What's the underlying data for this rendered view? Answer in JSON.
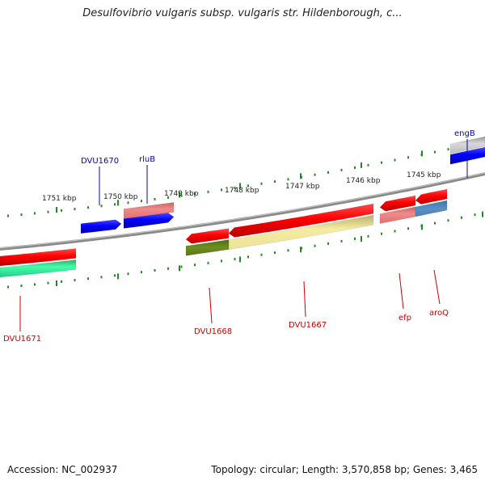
{
  "title": "Desulfovibrio vulgaris subsp. vulgaris str. Hildenborough, c...",
  "footer": {
    "accession": "Accession: NC_002937",
    "summary": "Topology: circular; Length: 3,570,858 bp; Genes: 3,465"
  },
  "ticks": [
    "1751 kbp",
    "1750 kbp",
    "1749 kbp",
    "1748 kbp",
    "1747 kbp",
    "1746 kbp",
    "1745 kbp"
  ],
  "genes": [
    {
      "label": "DVU1670",
      "color": "#0000cc",
      "strand": "+"
    },
    {
      "label": "rluB",
      "color": "#0000cc",
      "strand": "+"
    },
    {
      "label": "engB",
      "color": "#0000cc",
      "strand": "+"
    },
    {
      "label": "DVU1671",
      "color": "#cc0000",
      "strand": "-"
    },
    {
      "label": "DVU1668",
      "color": "#cc0000",
      "strand": "-"
    },
    {
      "label": "DVU1667",
      "color": "#cc0000",
      "strand": "-"
    },
    {
      "label": "efp",
      "color": "#cc0000",
      "strand": "-"
    },
    {
      "label": "aroQ",
      "color": "#cc0000",
      "strand": "-"
    }
  ],
  "colors": {
    "forward": "#0000ee",
    "reverse": "#ee0000",
    "backbone": "#888888",
    "tick": "#228b22"
  }
}
